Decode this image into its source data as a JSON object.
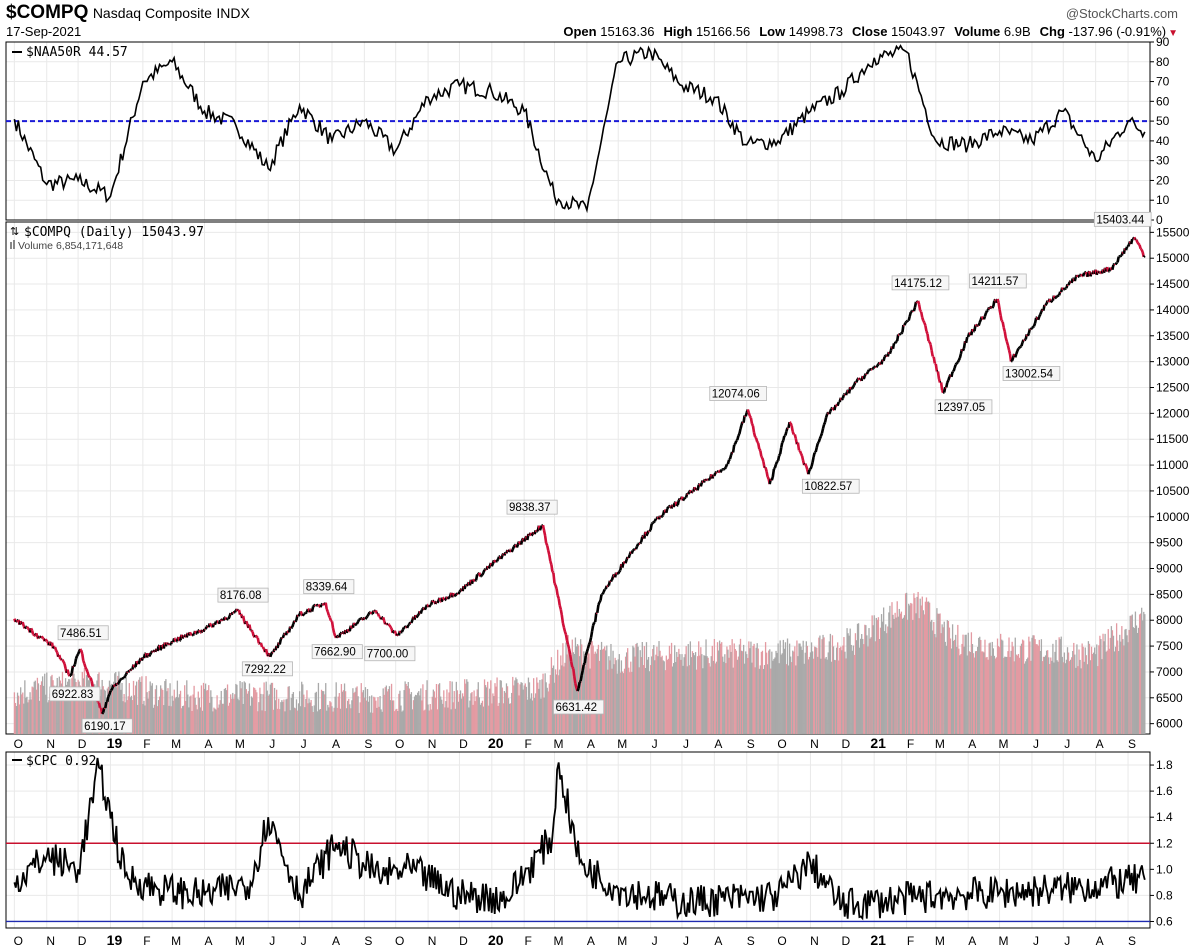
{
  "header": {
    "symbol": "$COMPQ",
    "name": "Nasdaq Composite",
    "exchange": "INDX",
    "date": "17-Sep-2021",
    "watermark": "@StockCharts.com",
    "ohlc": [
      {
        "label": "Open",
        "value": "15163.36"
      },
      {
        "label": "High",
        "value": "15166.56"
      },
      {
        "label": "Low",
        "value": "14998.73"
      },
      {
        "label": "Close",
        "value": "15043.97"
      },
      {
        "label": "Volume",
        "value": "6.9B"
      },
      {
        "label": "Chg",
        "value": "-137.96 (-0.91%)"
      }
    ],
    "chg_arrow": "▼"
  },
  "colors": {
    "up": "#000000",
    "down": "#d0103a",
    "volume_up": "#a9a9a9",
    "volume_down": "#e39aa2",
    "ref_blue": "#1a1ad6",
    "ref_red": "#c8102e",
    "ref_blue_line": "#1f2ab0",
    "grid": "#e9e9e9"
  },
  "chart_data": [
    {
      "type": "line",
      "panel": "top",
      "title": "$NAA50R 44.57",
      "symbol": "$NAA50R",
      "last": 44.57,
      "ylim": [
        0,
        90
      ],
      "yticks": [
        0,
        10,
        20,
        30,
        40,
        50,
        60,
        70,
        80,
        90
      ],
      "reference_line": {
        "value": 50,
        "style": "dashed",
        "color": "#1a1ad6"
      },
      "x": [
        "2018-10-01",
        "2018-11-01",
        "2018-12-01",
        "2019-01-01",
        "2019-02-01",
        "2019-03-01",
        "2019-04-01",
        "2019-05-01",
        "2019-06-01",
        "2019-07-01",
        "2019-08-01",
        "2019-09-01",
        "2019-10-01",
        "2019-11-01",
        "2019-12-01",
        "2020-01-01",
        "2020-02-01",
        "2020-03-01",
        "2020-04-01",
        "2020-05-01",
        "2020-06-01",
        "2020-07-01",
        "2020-08-01",
        "2020-09-01",
        "2020-10-01",
        "2020-11-01",
        "2020-12-01",
        "2021-01-01",
        "2021-02-01",
        "2021-03-01",
        "2021-04-01",
        "2021-05-01",
        "2021-06-01",
        "2021-07-01",
        "2021-08-01",
        "2021-09-01",
        "2021-09-17"
      ],
      "values": [
        51,
        18,
        20,
        12,
        70,
        80,
        55,
        48,
        26,
        58,
        40,
        50,
        35,
        62,
        68,
        65,
        55,
        12,
        5,
        80,
        85,
        68,
        62,
        38,
        40,
        55,
        65,
        82,
        85,
        40,
        38,
        45,
        40,
        55,
        30,
        50,
        44.57
      ]
    },
    {
      "type": "line",
      "panel": "main",
      "title": "$COMPQ (Daily) 15043.97",
      "symbol": "$COMPQ",
      "last": 15043.97,
      "volume_label": "Volume 6,854,171,648",
      "ylim": [
        5800,
        15700
      ],
      "yticks": [
        6000,
        6500,
        7000,
        7500,
        8000,
        8500,
        9000,
        9500,
        10000,
        10500,
        11000,
        11500,
        12000,
        12500,
        13000,
        13500,
        14000,
        14500,
        15000,
        15500
      ],
      "x": [
        "2018-10-01",
        "2018-10-04",
        "2018-11-08",
        "2018-11-23",
        "2018-12-03",
        "2018-12-24",
        "2019-01-01",
        "2019-02-01",
        "2019-03-01",
        "2019-04-01",
        "2019-05-03",
        "2019-06-03",
        "2019-07-01",
        "2019-07-26",
        "2019-08-05",
        "2019-09-12",
        "2019-10-02",
        "2019-11-01",
        "2019-12-02",
        "2020-01-02",
        "2020-02-19",
        "2020-03-23",
        "2020-04-15",
        "2020-05-15",
        "2020-06-10",
        "2020-07-15",
        "2020-08-14",
        "2020-09-02",
        "2020-09-23",
        "2020-10-12",
        "2020-10-30",
        "2020-11-16",
        "2020-12-15",
        "2021-01-14",
        "2021-02-12",
        "2021-03-08",
        "2021-04-01",
        "2021-04-29",
        "2021-05-12",
        "2021-06-15",
        "2021-07-15",
        "2021-08-16",
        "2021-09-07",
        "2021-09-17"
      ],
      "values": [
        8030,
        7986,
        7486.51,
        6922.83,
        7441,
        6190.17,
        6635,
        7281,
        7595,
        7828,
        8176.08,
        7292.22,
        8110,
        8339.64,
        7662.9,
        8190,
        7700,
        8290,
        8570,
        9092,
        9838.37,
        6631.42,
        8500,
        9350,
        10020,
        10550,
        11020,
        12074.06,
        10632,
        11830,
        10822.57,
        11920,
        12600,
        13100,
        14175.12,
        12397.05,
        13480,
        14211.57,
        13002.54,
        14120,
        14640,
        14800,
        15403.44,
        15043.97
      ],
      "annotations": [
        {
          "x": "2018-11-08",
          "label": "7486.51"
        },
        {
          "x": "2018-11-23",
          "label": "6922.83"
        },
        {
          "x": "2018-12-24",
          "label": "6190.17"
        },
        {
          "x": "2019-05-03",
          "label": "8176.08"
        },
        {
          "x": "2019-06-03",
          "label": "7292.22"
        },
        {
          "x": "2019-07-26",
          "label": "8339.64"
        },
        {
          "x": "2019-08-05",
          "label": "7662.90"
        },
        {
          "x": "2019-10-02",
          "label": "7700.00"
        },
        {
          "x": "2020-02-19",
          "label": "9838.37"
        },
        {
          "x": "2020-03-23",
          "label": "6631.42"
        },
        {
          "x": "2020-09-02",
          "label": "12074.06"
        },
        {
          "x": "2020-10-30",
          "label": "10822.57"
        },
        {
          "x": "2021-02-12",
          "label": "14175.12"
        },
        {
          "x": "2021-03-08",
          "label": "12397.05"
        },
        {
          "x": "2021-04-29",
          "label": "14211.57"
        },
        {
          "x": "2021-05-12",
          "label": "13002.54"
        },
        {
          "x": "2021-09-07",
          "label": "15403.44"
        }
      ],
      "volume": {
        "x": [
          "2018-10-01",
          "2018-12-15",
          "2019-03-01",
          "2019-06-01",
          "2019-09-01",
          "2019-12-01",
          "2020-02-15",
          "2020-03-15",
          "2020-05-01",
          "2020-07-01",
          "2020-09-01",
          "2020-11-01",
          "2020-12-15",
          "2021-01-25",
          "2021-02-15",
          "2021-03-15",
          "2021-05-01",
          "2021-06-15",
          "2021-08-01",
          "2021-09-17"
        ],
        "values": [
          2.4,
          3.0,
          2.2,
          2.2,
          2.1,
          2.3,
          2.6,
          4.9,
          4.3,
          4.6,
          4.6,
          4.7,
          5.4,
          7.2,
          7.4,
          5.5,
          5.0,
          4.8,
          4.6,
          6.9
        ],
        "unit": "billion shares"
      }
    },
    {
      "type": "line",
      "panel": "bottom",
      "title": "$CPC 0.92",
      "symbol": "$CPC",
      "last": 0.92,
      "ylim": [
        0.55,
        1.9
      ],
      "yticks": [
        0.6,
        0.8,
        1.0,
        1.2,
        1.4,
        1.6,
        1.8
      ],
      "reference_lines": [
        {
          "value": 1.2,
          "color": "#c8102e"
        },
        {
          "value": 0.6,
          "color": "#1f2ab0"
        }
      ],
      "x": [
        "2018-10-01",
        "2018-11-01",
        "2018-12-01",
        "2018-12-21",
        "2019-01-15",
        "2019-02-15",
        "2019-04-01",
        "2019-05-15",
        "2019-06-01",
        "2019-07-01",
        "2019-08-05",
        "2019-09-15",
        "2019-10-15",
        "2019-12-01",
        "2020-01-15",
        "2020-02-28",
        "2020-03-05",
        "2020-03-25",
        "2020-05-01",
        "2020-07-01",
        "2020-09-01",
        "2020-10-01",
        "2020-11-01",
        "2020-12-01",
        "2021-01-15",
        "2021-03-01",
        "2021-05-01",
        "2021-07-01",
        "2021-09-17"
      ],
      "values": [
        0.9,
        1.1,
        1.0,
        1.78,
        0.95,
        0.85,
        0.8,
        0.9,
        1.4,
        0.8,
        1.2,
        0.95,
        1.0,
        0.8,
        0.78,
        1.25,
        1.82,
        1.05,
        0.85,
        0.75,
        0.78,
        0.8,
        1.05,
        0.72,
        0.76,
        0.8,
        0.82,
        0.85,
        0.92
      ]
    }
  ],
  "x_axis": {
    "start": "2018-09-23",
    "end": "2021-09-22",
    "ticks": [
      {
        "date": "2018-10-01",
        "label": "O"
      },
      {
        "date": "2018-11-01",
        "label": "N"
      },
      {
        "date": "2018-12-01",
        "label": "D"
      },
      {
        "date": "2019-01-01",
        "label": "19",
        "bold": true
      },
      {
        "date": "2019-02-01",
        "label": "F"
      },
      {
        "date": "2019-03-01",
        "label": "M"
      },
      {
        "date": "2019-04-01",
        "label": "A"
      },
      {
        "date": "2019-05-01",
        "label": "M"
      },
      {
        "date": "2019-06-01",
        "label": "J"
      },
      {
        "date": "2019-07-01",
        "label": "J"
      },
      {
        "date": "2019-08-01",
        "label": "A"
      },
      {
        "date": "2019-09-01",
        "label": "S"
      },
      {
        "date": "2019-10-01",
        "label": "O"
      },
      {
        "date": "2019-11-01",
        "label": "N"
      },
      {
        "date": "2019-12-01",
        "label": "D"
      },
      {
        "date": "2020-01-01",
        "label": "20",
        "bold": true
      },
      {
        "date": "2020-02-01",
        "label": "F"
      },
      {
        "date": "2020-03-01",
        "label": "M"
      },
      {
        "date": "2020-04-01",
        "label": "A"
      },
      {
        "date": "2020-05-01",
        "label": "M"
      },
      {
        "date": "2020-06-01",
        "label": "J"
      },
      {
        "date": "2020-07-01",
        "label": "J"
      },
      {
        "date": "2020-08-01",
        "label": "A"
      },
      {
        "date": "2020-09-01",
        "label": "S"
      },
      {
        "date": "2020-10-01",
        "label": "O"
      },
      {
        "date": "2020-11-01",
        "label": "N"
      },
      {
        "date": "2020-12-01",
        "label": "D"
      },
      {
        "date": "2021-01-01",
        "label": "21",
        "bold": true
      },
      {
        "date": "2021-02-01",
        "label": "F"
      },
      {
        "date": "2021-03-01",
        "label": "M"
      },
      {
        "date": "2021-04-01",
        "label": "A"
      },
      {
        "date": "2021-05-01",
        "label": "M"
      },
      {
        "date": "2021-06-01",
        "label": "J"
      },
      {
        "date": "2021-07-01",
        "label": "J"
      },
      {
        "date": "2021-08-01",
        "label": "A"
      },
      {
        "date": "2021-09-01",
        "label": "S"
      }
    ]
  }
}
